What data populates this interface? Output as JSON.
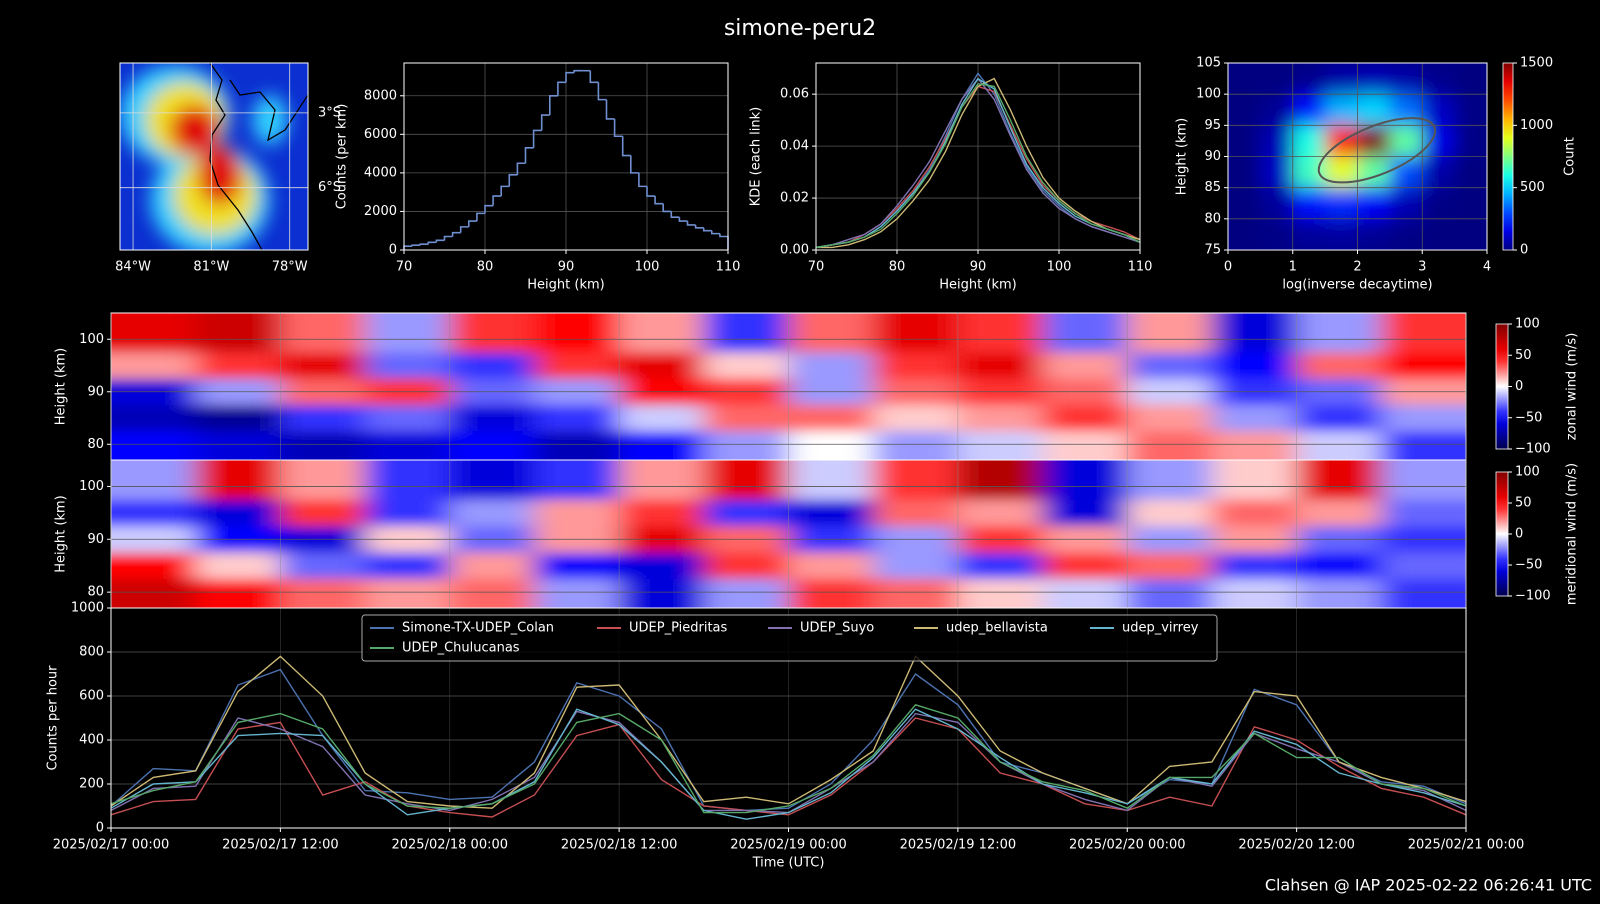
{
  "title": "simone-peru2",
  "footer": "Clahsen @ IAP 2025-02-22 06:26:41 UTC",
  "chart_data": [
    {
      "type": "map",
      "xlim": [
        -84.5,
        -77.3
      ],
      "ylim": [
        -8.5,
        -1.0
      ],
      "xticks": [
        {
          "value": -84,
          "label": "84°W"
        },
        {
          "value": -81,
          "label": "81°W"
        },
        {
          "value": -78,
          "label": "78°W"
        }
      ],
      "yticks": [
        {
          "value": -3,
          "label": "3°S"
        },
        {
          "value": -6,
          "label": "6°S"
        }
      ],
      "grid": true
    },
    {
      "type": "histogram",
      "xlabel": "Height (km)",
      "ylabel": "Counts (per km)",
      "color": "#6f8fd0",
      "bins": [
        70,
        71,
        72,
        73,
        74,
        75,
        76,
        77,
        78,
        79,
        80,
        81,
        82,
        83,
        84,
        85,
        86,
        87,
        88,
        89,
        90,
        91,
        92,
        93,
        94,
        95,
        96,
        97,
        98,
        99,
        100,
        101,
        102,
        103,
        104,
        105,
        106,
        107,
        108,
        109,
        110
      ],
      "values": [
        200,
        250,
        300,
        400,
        500,
        700,
        900,
        1200,
        1500,
        1900,
        2300,
        2800,
        3300,
        3900,
        4500,
        5300,
        6200,
        7000,
        8000,
        8700,
        9200,
        9300,
        9300,
        8700,
        7800,
        6800,
        5900,
        4900,
        4000,
        3300,
        2800,
        2400,
        2000,
        1700,
        1500,
        1300,
        1150,
        1000,
        850,
        700
      ],
      "xlim": [
        70,
        110
      ],
      "ylim": [
        0,
        9700
      ],
      "xticks": [
        70,
        80,
        90,
        100,
        110
      ],
      "yticks": [
        0,
        2000,
        4000,
        6000,
        8000
      ],
      "grid": true
    },
    {
      "type": "line",
      "xlabel": "Height (km)",
      "ylabel": "KDE (each link)",
      "x": [
        70,
        72,
        74,
        76,
        78,
        80,
        82,
        84,
        86,
        88,
        90,
        92,
        94,
        96,
        98,
        100,
        102,
        104,
        106,
        108,
        110
      ],
      "series": [
        {
          "color": "#4c72b0",
          "values": [
            0.001,
            0.002,
            0.003,
            0.005,
            0.009,
            0.015,
            0.022,
            0.031,
            0.044,
            0.058,
            0.068,
            0.06,
            0.045,
            0.032,
            0.023,
            0.017,
            0.012,
            0.009,
            0.007,
            0.005,
            0.003
          ]
        },
        {
          "color": "#c44e52",
          "values": [
            0.001,
            0.002,
            0.003,
            0.006,
            0.01,
            0.016,
            0.023,
            0.032,
            0.043,
            0.055,
            0.063,
            0.061,
            0.048,
            0.035,
            0.025,
            0.019,
            0.014,
            0.011,
            0.009,
            0.007,
            0.004
          ]
        },
        {
          "color": "#8172b2",
          "values": [
            0.001,
            0.002,
            0.004,
            0.006,
            0.01,
            0.017,
            0.025,
            0.034,
            0.046,
            0.058,
            0.066,
            0.058,
            0.044,
            0.031,
            0.022,
            0.016,
            0.012,
            0.009,
            0.007,
            0.005,
            0.003
          ]
        },
        {
          "color": "#ccb974",
          "values": [
            0.001,
            0.001,
            0.002,
            0.004,
            0.007,
            0.012,
            0.019,
            0.027,
            0.038,
            0.052,
            0.063,
            0.066,
            0.054,
            0.04,
            0.028,
            0.02,
            0.015,
            0.011,
            0.008,
            0.006,
            0.004
          ]
        },
        {
          "color": "#64b5cd",
          "values": [
            0.001,
            0.002,
            0.003,
            0.005,
            0.009,
            0.015,
            0.022,
            0.03,
            0.042,
            0.056,
            0.066,
            0.062,
            0.047,
            0.033,
            0.024,
            0.018,
            0.013,
            0.01,
            0.008,
            0.006,
            0.003
          ]
        },
        {
          "color": "#55a868",
          "values": [
            0.001,
            0.002,
            0.003,
            0.005,
            0.008,
            0.014,
            0.021,
            0.03,
            0.041,
            0.055,
            0.064,
            0.063,
            0.05,
            0.036,
            0.026,
            0.019,
            0.014,
            0.01,
            0.008,
            0.006,
            0.003
          ]
        }
      ],
      "xlim": [
        70,
        110
      ],
      "ylim": [
        0,
        0.072
      ],
      "xticks": [
        70,
        80,
        90,
        100,
        110
      ],
      "yticks": [
        {
          "value": 0,
          "label": "0.00"
        },
        {
          "value": 0.02,
          "label": "0.02"
        },
        {
          "value": 0.04,
          "label": "0.04"
        },
        {
          "value": 0.06,
          "label": "0.06"
        }
      ],
      "grid": true
    },
    {
      "type": "density",
      "xlabel": "log(inverse decaytime)",
      "ylabel": "Height (km)",
      "colorbar_label": "Count",
      "colormap": "jet",
      "x": [
        0.25,
        0.75,
        1.25,
        1.75,
        2.25,
        2.75,
        3.25,
        3.75
      ],
      "y": [
        102.5,
        97.5,
        92.5,
        87.5,
        82.5,
        77.5
      ],
      "values": [
        [
          0,
          0,
          20,
          60,
          80,
          60,
          20,
          0
        ],
        [
          0,
          30,
          200,
          450,
          500,
          350,
          100,
          10
        ],
        [
          0,
          80,
          600,
          1300,
          1500,
          700,
          150,
          10
        ],
        [
          0,
          100,
          650,
          900,
          700,
          300,
          60,
          0
        ],
        [
          0,
          40,
          200,
          250,
          180,
          80,
          10,
          0
        ],
        [
          0,
          10,
          40,
          50,
          30,
          10,
          0,
          0
        ]
      ],
      "xlim": [
        0,
        4
      ],
      "ylim": [
        75,
        105
      ],
      "xticks": [
        0,
        1,
        2,
        3,
        4
      ],
      "yticks": [
        75,
        80,
        85,
        90,
        95,
        100,
        105
      ],
      "clim": [
        0,
        1500
      ],
      "cticks": [
        0,
        500,
        1000,
        1500
      ],
      "grid": true
    },
    {
      "type": "heatmap",
      "ylabel": "Height (km)",
      "colorbar_label": "zonal wind (m/s)",
      "colormap": "seismic",
      "y": [
        100,
        95,
        90,
        85,
        80
      ],
      "values": [
        [
          60,
          70,
          30,
          -20,
          40,
          50,
          20,
          -40,
          30,
          60,
          40,
          -30,
          20,
          -60,
          -20,
          40
        ],
        [
          20,
          40,
          60,
          -30,
          -40,
          40,
          60,
          10,
          -20,
          40,
          60,
          20,
          -30,
          -50,
          30,
          50
        ],
        [
          -60,
          -20,
          30,
          40,
          -30,
          -20,
          50,
          40,
          -20,
          30,
          40,
          30,
          -10,
          -40,
          -30,
          20
        ],
        [
          -70,
          -80,
          -40,
          -30,
          -60,
          -40,
          -10,
          30,
          30,
          10,
          20,
          40,
          20,
          -20,
          -40,
          -20
        ],
        [
          -50,
          -60,
          -70,
          -60,
          -50,
          -70,
          -50,
          -20,
          0,
          -20,
          -10,
          10,
          30,
          20,
          -10,
          -40
        ]
      ],
      "ylim": [
        77,
        105
      ],
      "yticks": [
        80,
        90,
        100
      ],
      "clim": [
        -100,
        100
      ],
      "cticks": [
        {
          "value": -100,
          "label": "−100"
        },
        {
          "value": -50,
          "label": "−50"
        },
        0,
        50,
        100
      ]
    },
    {
      "type": "heatmap",
      "ylabel": "Height (km)",
      "colorbar_label": "meridional wind (m/s)",
      "colormap": "seismic",
      "y": [
        100,
        95,
        90,
        85,
        80
      ],
      "values": [
        [
          -20,
          60,
          20,
          -40,
          -60,
          -40,
          20,
          60,
          -10,
          40,
          80,
          -60,
          -20,
          10,
          60,
          -20
        ],
        [
          -40,
          -60,
          40,
          -40,
          -20,
          20,
          40,
          -40,
          -60,
          30,
          20,
          -60,
          10,
          30,
          20,
          -30
        ],
        [
          -10,
          -50,
          -60,
          10,
          -30,
          20,
          60,
          30,
          -40,
          -20,
          40,
          20,
          -20,
          20,
          -30,
          -40
        ],
        [
          50,
          10,
          -30,
          -40,
          20,
          -50,
          -60,
          40,
          20,
          -20,
          -40,
          40,
          30,
          -40,
          -50,
          -30
        ],
        [
          70,
          50,
          30,
          20,
          30,
          -20,
          -60,
          -20,
          40,
          30,
          10,
          -10,
          -30,
          -10,
          -20,
          -40
        ]
      ],
      "ylim": [
        77,
        105
      ],
      "yticks": [
        80,
        90,
        100
      ],
      "clim": [
        -100,
        100
      ],
      "cticks": [
        {
          "value": -100,
          "label": "−100"
        },
        {
          "value": -50,
          "label": "−50"
        },
        0,
        50,
        100
      ]
    },
    {
      "type": "line",
      "xlabel": "Time (UTC)",
      "ylabel": "Counts per hour",
      "legend": "upper center",
      "categories": [
        "2025/02/17 00:00",
        null,
        null,
        null,
        "2025/02/17 12:00",
        null,
        null,
        null,
        "2025/02/18 00:00",
        null,
        null,
        null,
        "2025/02/18 12:00",
        null,
        null,
        null,
        "2025/02/19 00:00",
        null,
        null,
        null,
        "2025/02/19 12:00",
        null,
        null,
        null,
        "2025/02/20 00:00",
        null,
        null,
        null,
        "2025/02/20 12:00",
        null,
        null,
        null,
        "2025/02/21 00:00"
      ],
      "series": [
        {
          "name": "Simone-TX-UDEP_Colan",
          "color": "#4c72b0",
          "values": [
            100,
            270,
            260,
            650,
            720,
            420,
            170,
            160,
            130,
            140,
            300,
            660,
            600,
            450,
            100,
            80,
            90,
            200,
            400,
            700,
            560,
            300,
            250,
            180,
            110,
            220,
            200,
            630,
            560,
            300,
            210,
            190,
            110
          ]
        },
        {
          "name": "UDEP_Piedritas",
          "color": "#c44e52",
          "values": [
            60,
            120,
            130,
            450,
            480,
            150,
            210,
            100,
            70,
            50,
            150,
            420,
            470,
            220,
            100,
            80,
            60,
            150,
            300,
            500,
            450,
            250,
            200,
            110,
            80,
            140,
            100,
            460,
            400,
            280,
            180,
            140,
            60
          ]
        },
        {
          "name": "UDEP_Suyo",
          "color": "#8172b2",
          "values": [
            80,
            180,
            190,
            500,
            450,
            370,
            150,
            110,
            80,
            130,
            230,
            530,
            480,
            300,
            80,
            80,
            70,
            180,
            300,
            520,
            480,
            300,
            200,
            130,
            80,
            230,
            190,
            430,
            360,
            300,
            200,
            170,
            80
          ]
        },
        {
          "name": "udep_bellavista",
          "color": "#ccb974",
          "values": [
            100,
            230,
            260,
            620,
            780,
            600,
            250,
            120,
            100,
            90,
            250,
            640,
            650,
            400,
            120,
            140,
            110,
            220,
            350,
            780,
            600,
            350,
            250,
            180,
            110,
            280,
            300,
            620,
            600,
            300,
            230,
            180,
            120
          ]
        },
        {
          "name": "udep_virrey",
          "color": "#64b5cd",
          "values": [
            90,
            200,
            210,
            420,
            430,
            420,
            200,
            60,
            90,
            110,
            210,
            540,
            470,
            300,
            80,
            40,
            70,
            160,
            320,
            540,
            450,
            320,
            200,
            160,
            110,
            230,
            200,
            440,
            380,
            250,
            200,
            160,
            100
          ]
        },
        {
          "name": "UDEP_Chulucanas",
          "color": "#55a868",
          "values": [
            110,
            170,
            210,
            480,
            520,
            450,
            200,
            100,
            90,
            110,
            200,
            480,
            520,
            400,
            70,
            70,
            100,
            180,
            330,
            560,
            500,
            300,
            210,
            170,
            90,
            230,
            230,
            430,
            320,
            320,
            200,
            180,
            100
          ]
        }
      ],
      "ylim": [
        0,
        1000
      ],
      "yticks": [
        0,
        200,
        400,
        600,
        800,
        1000
      ],
      "grid": true
    }
  ]
}
